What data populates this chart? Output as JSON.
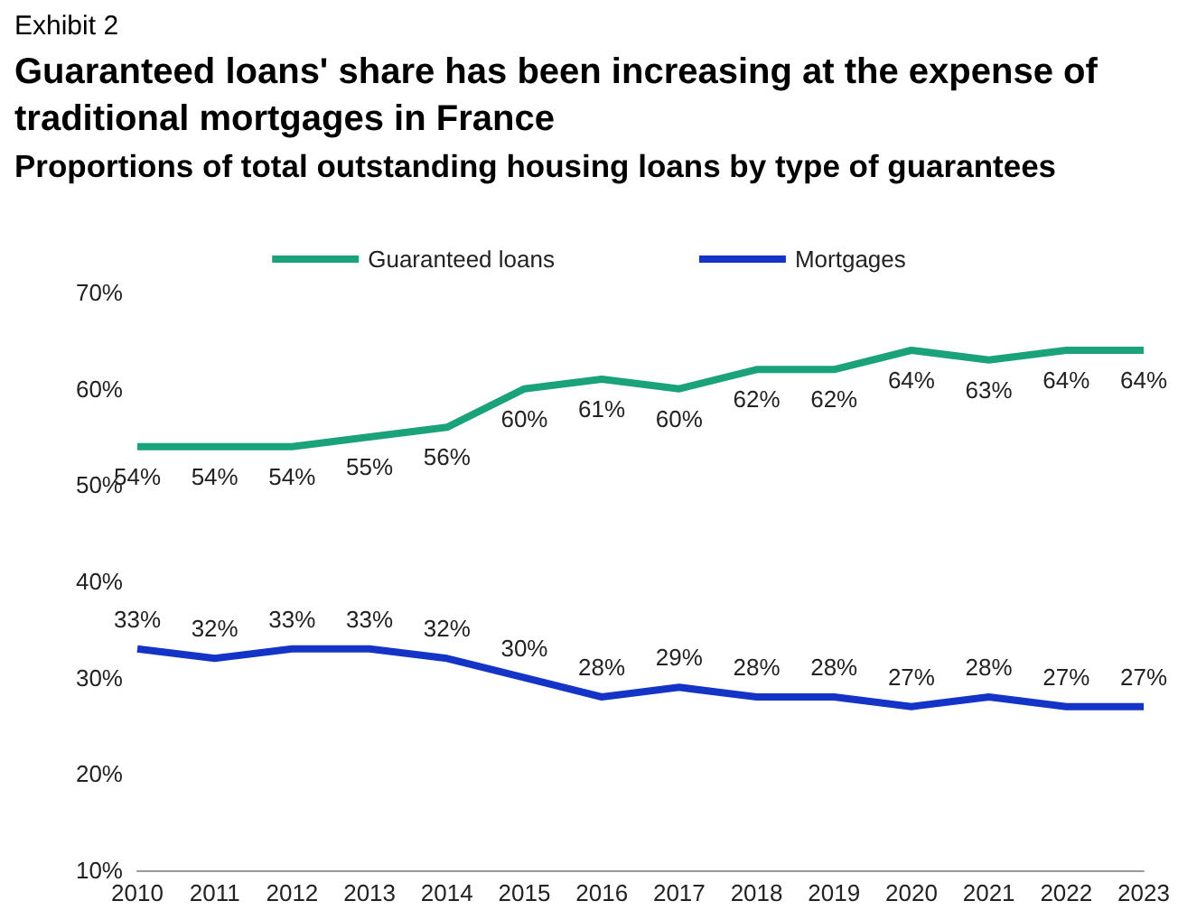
{
  "chart_data": {
    "type": "line",
    "title": "Guaranteed loans' share has been increasing at the expense of traditional mortgages in France",
    "subtitle": "Proportions of total outstanding housing loans by type of guarantees",
    "annotations": [
      "Exhibit 2"
    ],
    "categories": [
      "2010",
      "2011",
      "2012",
      "2013",
      "2014",
      "2015",
      "2016",
      "2017",
      "2018",
      "2019",
      "2020",
      "2021",
      "2022",
      "2023"
    ],
    "series": [
      {
        "name": "Guaranteed loans",
        "color": "#1aa37a",
        "values": [
          54,
          54,
          54,
          55,
          56,
          60,
          61,
          60,
          62,
          62,
          64,
          63,
          64,
          64
        ],
        "value_labels": [
          "54%",
          "54%",
          "54%",
          "55%",
          "56%",
          "60%",
          "61%",
          "60%",
          "62%",
          "62%",
          "64%",
          "63%",
          "64%",
          "64%"
        ]
      },
      {
        "name": "Mortgages",
        "color": "#1434c8",
        "values": [
          33,
          32,
          33,
          33,
          32,
          30,
          28,
          29,
          28,
          28,
          27,
          28,
          27,
          27
        ],
        "value_labels": [
          "33%",
          "32%",
          "33%",
          "33%",
          "32%",
          "30%",
          "28%",
          "29%",
          "28%",
          "28%",
          "27%",
          "28%",
          "27%",
          "27%"
        ]
      }
    ],
    "ylim": [
      10,
      70
    ],
    "yticks": [
      {
        "value": 10,
        "label": "10%"
      },
      {
        "value": 20,
        "label": "20%"
      },
      {
        "value": 30,
        "label": "30%"
      },
      {
        "value": 40,
        "label": "40%"
      },
      {
        "value": 50,
        "label": "50%"
      },
      {
        "value": 60,
        "label": "60%"
      },
      {
        "value": 70,
        "label": "70%"
      }
    ],
    "legend": "top",
    "marker": "none",
    "line_style": "solid",
    "grid": false
  }
}
